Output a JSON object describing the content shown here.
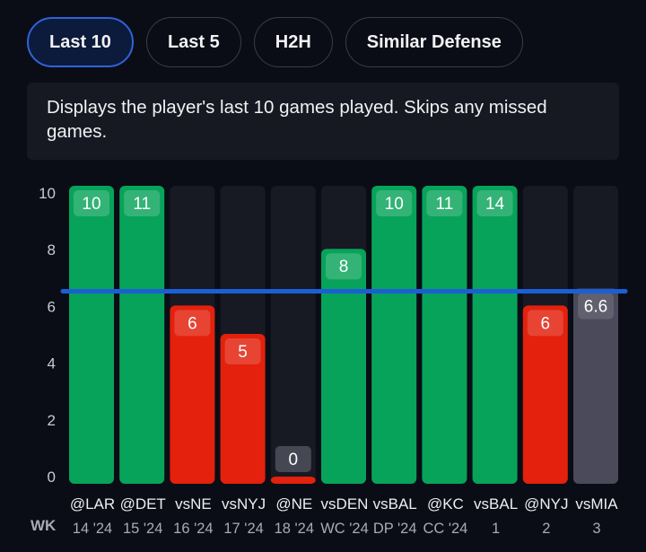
{
  "tabs": [
    {
      "label": "Last 10",
      "active": true
    },
    {
      "label": "Last 5",
      "active": false
    },
    {
      "label": "H2H",
      "active": false
    },
    {
      "label": "Similar Defense",
      "active": false
    }
  ],
  "description": "Displays the player's last 10 games played. Skips any missed games.",
  "colors": {
    "over": "#08a35a",
    "under": "#e3210d",
    "projection": "#4a4a5a",
    "line": "#1a5fd6",
    "track": "#171923"
  },
  "chart_data": {
    "type": "bar",
    "title": "",
    "xlabel": "",
    "ylabel": "",
    "ylim": [
      0,
      10
    ],
    "yticks": [
      0,
      2,
      4,
      6,
      8,
      10
    ],
    "threshold_line": 6.6,
    "row_label": "WK",
    "categories": [
      "@LAR",
      "@DET",
      "vsNE",
      "vsNYJ",
      "@NE",
      "vsDEN",
      "vsBAL",
      "@KC",
      "vsBAL",
      "@NYJ",
      "vsMIA"
    ],
    "weeks": [
      "14 '24",
      "15 '24",
      "16 '24",
      "17 '24",
      "18 '24",
      "WC '24",
      "DP '24",
      "CC '24",
      "1",
      "2",
      "3"
    ],
    "values": [
      10,
      11,
      6,
      5,
      0,
      8,
      10,
      11,
      14,
      6,
      6.6
    ],
    "value_labels": [
      "10",
      "11",
      "6",
      "5",
      "0",
      "8",
      "10",
      "11",
      "14",
      "6",
      "6.6"
    ],
    "status": [
      "over",
      "over",
      "under",
      "under",
      "under",
      "over",
      "over",
      "over",
      "over",
      "under",
      "projection"
    ]
  }
}
